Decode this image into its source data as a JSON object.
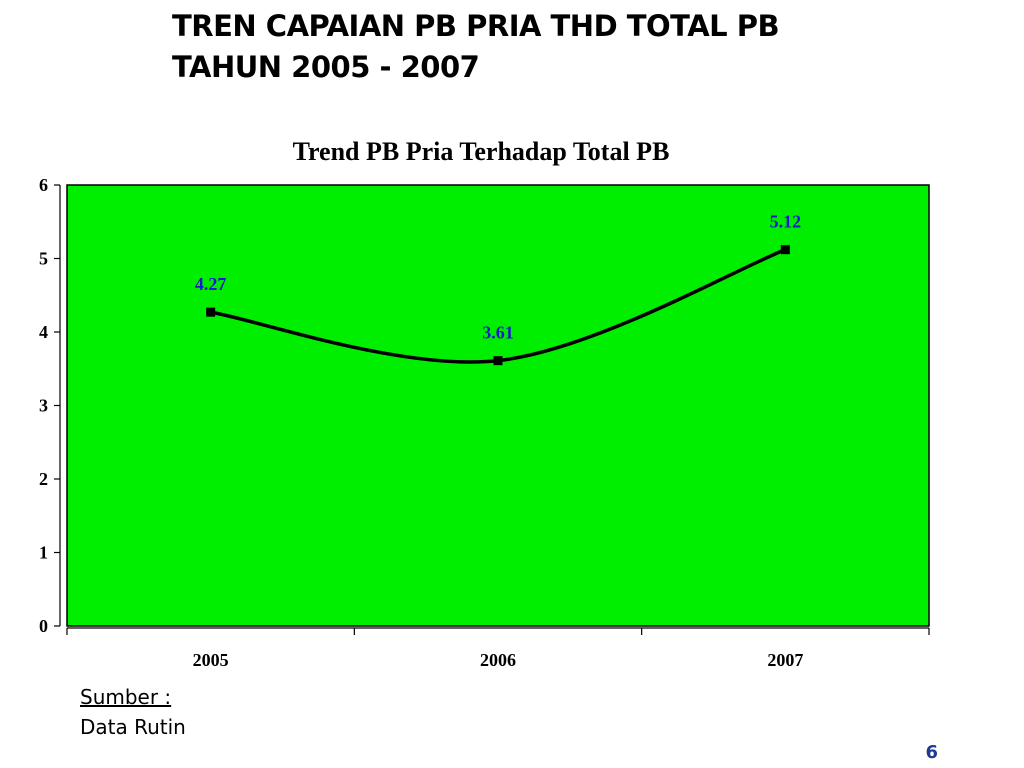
{
  "slide": {
    "title": "TREN CAPAIAN  PB PRIA THD TOTAL PB\nTAHUN 2005 - 2007",
    "source_label": "Sumber :",
    "source_value": "Data Rutin",
    "page_number": "6"
  },
  "chart_data": {
    "type": "line",
    "title": "Trend PB Pria Terhadap Total PB",
    "xlabel": "",
    "ylabel": "",
    "categories": [
      "2005",
      "2006",
      "2007"
    ],
    "series": [
      {
        "values": [
          4.27,
          3.61,
          5.12
        ]
      }
    ],
    "data_labels": [
      "4.27",
      "3.61",
      "5.12"
    ],
    "ylim": [
      0,
      6
    ],
    "yticks": [
      0,
      1,
      2,
      3,
      4,
      5,
      6
    ],
    "smooth": true,
    "grid": false,
    "legend": "none",
    "colors": {
      "plot_background": "#00ee00",
      "line": "#000000",
      "data_label": "#1a1acc",
      "page_number": "#1f3a93"
    }
  }
}
